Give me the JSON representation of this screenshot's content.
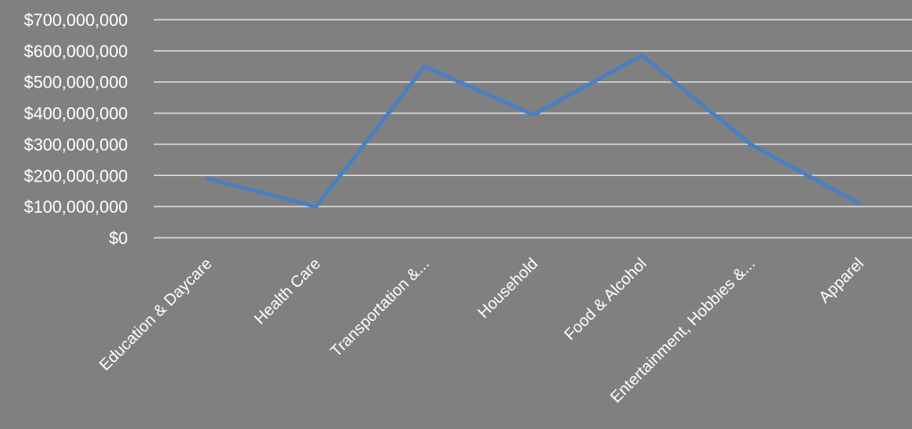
{
  "colors": {
    "background": "#808080",
    "series_line": "#4a7fc1",
    "gridline": "#d9d9d9",
    "text": "#ffffff"
  },
  "chart_data": {
    "type": "line",
    "categories": [
      "Education & Daycare",
      "Health Care",
      "Transportation &...",
      "Household",
      "Food & Alcohol",
      "Entertainment, Hobbies &...",
      "Apparel"
    ],
    "series": [
      {
        "values": [
          190000000,
          100000000,
          550000000,
          395000000,
          585000000,
          300000000,
          110000000
        ]
      }
    ],
    "y_ticks": [
      "$0",
      "$100,000,000",
      "$200,000,000",
      "$300,000,000",
      "$400,000,000",
      "$500,000,000",
      "$600,000,000",
      "$700,000,000"
    ],
    "ylim": [
      0,
      700000000
    ],
    "grid": true,
    "legend": "none",
    "title": "",
    "xlabel": "",
    "ylabel": ""
  }
}
